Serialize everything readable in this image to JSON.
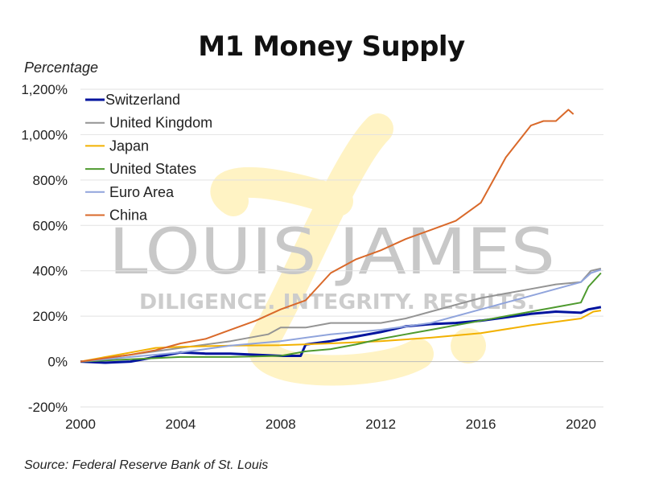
{
  "chart_data": {
    "type": "line",
    "title": "M1 Money Supply",
    "ylabel": "Percentage",
    "xlabel": "",
    "source": "Source: Federal Reserve Bank of St. Louis",
    "xlim": [
      2000,
      2020.9
    ],
    "ylim": [
      -200,
      1200
    ],
    "xticks": [
      2000,
      2004,
      2008,
      2012,
      2016,
      2020
    ],
    "yticks": [
      -200,
      0,
      200,
      400,
      600,
      800,
      1000,
      1200
    ],
    "ytick_labels": [
      "-200%",
      "0%",
      "200%",
      "400%",
      "600%",
      "800%",
      "1,000%",
      "1,200%"
    ],
    "grid": "horizontal",
    "legend_position": "top-left",
    "series": [
      {
        "name": "Switzerland",
        "color": "#00139e",
        "width": 3,
        "x": [
          2000,
          2001,
          2002,
          2003,
          2004,
          2005,
          2006,
          2007,
          2008,
          2008.8,
          2009,
          2010,
          2011,
          2012,
          2013,
          2014,
          2015,
          2016,
          2017,
          2018,
          2019,
          2020,
          2020.3,
          2020.8
        ],
        "y": [
          0,
          -5,
          0,
          20,
          40,
          35,
          35,
          30,
          25,
          25,
          75,
          90,
          110,
          130,
          155,
          165,
          170,
          180,
          195,
          210,
          220,
          215,
          230,
          240
        ]
      },
      {
        "name": "United Kingdom",
        "color": "#949494",
        "width": 2,
        "x": [
          2000,
          2002,
          2004,
          2006,
          2007.5,
          2008,
          2009,
          2010,
          2011,
          2012,
          2013,
          2014,
          2015,
          2016,
          2017,
          2018,
          2019,
          2020,
          2020.4,
          2020.8
        ],
        "y": [
          0,
          30,
          60,
          90,
          120,
          150,
          150,
          170,
          170,
          170,
          190,
          220,
          250,
          280,
          300,
          320,
          340,
          350,
          400,
          410
        ]
      },
      {
        "name": "Japan",
        "color": "#f2b100",
        "width": 2,
        "x": [
          2000,
          2002,
          2003,
          2004,
          2006,
          2008,
          2010,
          2012,
          2014,
          2016,
          2018,
          2020,
          2020.5,
          2020.8
        ],
        "y": [
          0,
          40,
          60,
          65,
          70,
          72,
          80,
          90,
          105,
          125,
          160,
          190,
          220,
          225
        ]
      },
      {
        "name": "United States",
        "color": "#4e9a2e",
        "width": 2,
        "x": [
          2000,
          2002,
          2004,
          2006,
          2008,
          2009,
          2010,
          2011,
          2012,
          2013,
          2014,
          2015,
          2016,
          2017,
          2018,
          2019,
          2020,
          2020.3,
          2020.8
        ],
        "y": [
          0,
          10,
          20,
          20,
          25,
          45,
          55,
          75,
          100,
          120,
          140,
          160,
          180,
          200,
          220,
          240,
          260,
          330,
          390
        ]
      },
      {
        "name": "Euro Area",
        "color": "#90a4dc",
        "width": 2,
        "x": [
          2000,
          2002,
          2004,
          2006,
          2008,
          2010,
          2012,
          2014,
          2016,
          2018,
          2020,
          2020.4,
          2020.8
        ],
        "y": [
          0,
          20,
          40,
          70,
          90,
          120,
          140,
          170,
          230,
          290,
          350,
          390,
          405
        ]
      },
      {
        "name": "China",
        "color": "#d9692a",
        "width": 2,
        "x": [
          2000,
          2001,
          2002,
          2003,
          2004,
          2005,
          2006,
          2007,
          2008,
          2009,
          2010,
          2011,
          2012,
          2013,
          2014,
          2015,
          2016,
          2017,
          2018,
          2018.5,
          2019,
          2019.5,
          2019.7
        ],
        "y": [
          0,
          15,
          30,
          50,
          80,
          100,
          140,
          180,
          230,
          270,
          390,
          450,
          490,
          540,
          580,
          620,
          700,
          900,
          1040,
          1060,
          1060,
          1110,
          1090
        ]
      }
    ]
  },
  "watermark": {
    "brand": "LOUIS JAMES",
    "tagline": "DILIGENCE. INTEGRITY. RESULTS."
  }
}
